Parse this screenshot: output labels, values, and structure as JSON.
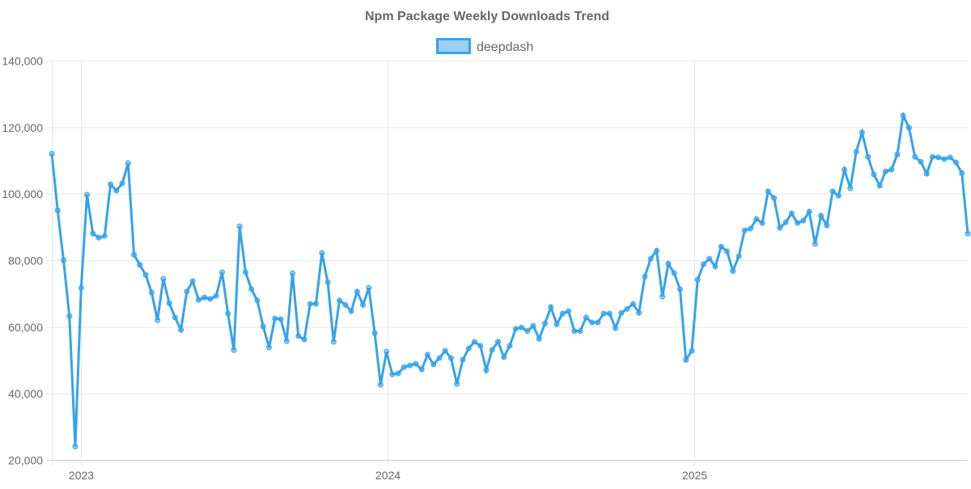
{
  "chart_data": {
    "type": "line",
    "title": "Npm Package Weekly Downloads Trend",
    "legend": {
      "position": "top",
      "entries": [
        "deepdash"
      ]
    },
    "grid": true,
    "colors": {
      "line": "#36A2EB",
      "fill": "rgba(54,162,235,0.5)",
      "grid": "#e5e5e5",
      "text": "#666666"
    },
    "xlabel": "",
    "ylabel": "",
    "ylim": [
      20000,
      140000
    ],
    "yticks": [
      "20,000",
      "40,000",
      "60,000",
      "80,000",
      "100,000",
      "120,000",
      "140,000"
    ],
    "xticks": [
      {
        "label": "2023",
        "date": "2023-01-01"
      },
      {
        "label": "2024",
        "date": "2024-01-01"
      },
      {
        "label": "2025",
        "date": "2025-01-01"
      }
    ],
    "x": [
      "2022-11-27",
      "2022-12-04",
      "2022-12-11",
      "2022-12-18",
      "2022-12-25",
      "2023-01-01",
      "2023-01-08",
      "2023-01-15",
      "2023-01-22",
      "2023-01-29",
      "2023-02-05",
      "2023-02-12",
      "2023-02-19",
      "2023-02-26",
      "2023-03-05",
      "2023-03-12",
      "2023-03-19",
      "2023-03-26",
      "2023-04-02",
      "2023-04-09",
      "2023-04-16",
      "2023-04-23",
      "2023-04-30",
      "2023-05-07",
      "2023-05-14",
      "2023-05-21",
      "2023-05-28",
      "2023-06-04",
      "2023-06-11",
      "2023-06-18",
      "2023-06-25",
      "2023-07-02",
      "2023-07-09",
      "2023-07-16",
      "2023-07-23",
      "2023-07-30",
      "2023-08-06",
      "2023-08-13",
      "2023-08-20",
      "2023-08-27",
      "2023-09-03",
      "2023-09-10",
      "2023-09-17",
      "2023-09-24",
      "2023-10-01",
      "2023-10-08",
      "2023-10-15",
      "2023-10-22",
      "2023-10-29",
      "2023-11-05",
      "2023-11-12",
      "2023-11-19",
      "2023-11-26",
      "2023-12-03",
      "2023-12-10",
      "2023-12-17",
      "2023-12-24",
      "2023-12-31",
      "2024-01-07",
      "2024-01-14",
      "2024-01-21",
      "2024-01-28",
      "2024-02-04",
      "2024-02-11",
      "2024-02-18",
      "2024-02-25",
      "2024-03-03",
      "2024-03-10",
      "2024-03-17",
      "2024-03-24",
      "2024-03-31",
      "2024-04-07",
      "2024-04-14",
      "2024-04-21",
      "2024-04-28",
      "2024-05-05",
      "2024-05-12",
      "2024-05-19",
      "2024-05-26",
      "2024-06-02",
      "2024-06-09",
      "2024-06-16",
      "2024-06-23",
      "2024-06-30",
      "2024-07-07",
      "2024-07-14",
      "2024-07-21",
      "2024-07-28",
      "2024-08-04",
      "2024-08-11",
      "2024-08-18",
      "2024-08-25",
      "2024-09-01",
      "2024-09-08",
      "2024-09-15",
      "2024-09-22",
      "2024-09-29",
      "2024-10-06",
      "2024-10-13",
      "2024-10-20",
      "2024-10-27",
      "2024-11-03",
      "2024-11-10",
      "2024-11-17",
      "2024-11-24",
      "2024-12-01",
      "2024-12-08",
      "2024-12-15",
      "2024-12-22",
      "2024-12-29",
      "2025-01-05",
      "2025-01-12",
      "2025-01-19",
      "2025-01-26",
      "2025-02-02",
      "2025-02-09",
      "2025-02-16",
      "2025-02-23",
      "2025-03-02",
      "2025-03-09",
      "2025-03-16",
      "2025-03-23",
      "2025-03-30",
      "2025-04-06",
      "2025-04-13",
      "2025-04-20",
      "2025-04-27",
      "2025-05-04",
      "2025-05-11",
      "2025-05-18",
      "2025-05-25",
      "2025-06-01",
      "2025-06-08",
      "2025-06-15",
      "2025-06-22",
      "2025-06-29",
      "2025-07-06",
      "2025-07-13",
      "2025-07-20",
      "2025-07-27",
      "2025-08-03",
      "2025-08-10",
      "2025-08-17",
      "2025-08-24",
      "2025-08-31",
      "2025-09-07",
      "2025-09-14",
      "2025-09-21",
      "2025-09-28",
      "2025-10-05",
      "2025-10-12",
      "2025-10-19",
      "2025-10-26",
      "2025-11-02",
      "2025-11-09",
      "2025-11-16",
      "2025-11-23"
    ],
    "series": [
      {
        "name": "deepdash",
        "values": [
          112000,
          95000,
          80000,
          63200,
          24000,
          71700,
          99700,
          88000,
          86800,
          87300,
          102800,
          100900,
          103100,
          109200,
          81700,
          78600,
          75600,
          70300,
          62000,
          74400,
          67100,
          62800,
          59100,
          70600,
          73700,
          68100,
          68800,
          68400,
          69300,
          76400,
          64000,
          53000,
          90200,
          76400,
          71300,
          67900,
          60100,
          53800,
          62500,
          62300,
          55700,
          76100,
          57200,
          56200,
          66900,
          66900,
          82200,
          73400,
          55500,
          67900,
          66600,
          64700,
          70600,
          66600,
          71700,
          58100,
          42600,
          52500,
          45700,
          46000,
          47900,
          48400,
          48900,
          47200,
          51600,
          48700,
          50600,
          52800,
          50600,
          42800,
          50100,
          53500,
          55500,
          54300,
          47000,
          53100,
          55500,
          50900,
          54300,
          59400,
          59800,
          58700,
          60300,
          56400,
          61000,
          65900,
          60800,
          64000,
          64700,
          58700,
          58700,
          62800,
          61300,
          61300,
          64000,
          64000,
          59600,
          64200,
          65400,
          66900,
          64200,
          75100,
          80500,
          82900,
          69100,
          79000,
          76100,
          71300,
          50100,
          52800,
          74200,
          78800,
          80500,
          78100,
          84100,
          82700,
          76800,
          81200,
          89000,
          89500,
          92400,
          91200,
          100700,
          98700,
          89700,
          91400,
          94100,
          91200,
          91900,
          94600,
          84900,
          93400,
          90500,
          100700,
          99400,
          107200,
          101600,
          112600,
          118400,
          111100,
          105800,
          102400,
          106700,
          107200,
          111800,
          123500,
          119800,
          111100,
          109600,
          106000,
          111100,
          110900,
          110400,
          110900,
          109400,
          106200,
          88000
        ]
      }
    ]
  }
}
